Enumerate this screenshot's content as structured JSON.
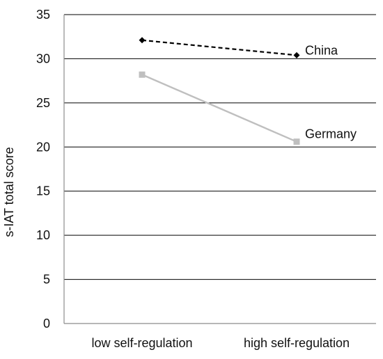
{
  "chart_data": {
    "type": "line",
    "title": "",
    "xlabel": "",
    "ylabel": "s-IAT total score",
    "categories": [
      "low self-regulation",
      "high self-regulation"
    ],
    "ylim": [
      0,
      35
    ],
    "yticks": [
      "0",
      "5",
      "10",
      "15",
      "20",
      "25",
      "30",
      "35"
    ],
    "grid": true,
    "legend": "inline labels at line ends",
    "series": [
      {
        "name": "China",
        "values": [
          32.1,
          30.4
        ],
        "color": "#000000",
        "dash": "dashed",
        "marker": "diamond"
      },
      {
        "name": "Germany",
        "values": [
          28.2,
          20.6
        ],
        "color": "#bfbfbf",
        "dash": "solid",
        "marker": "square"
      }
    ]
  }
}
